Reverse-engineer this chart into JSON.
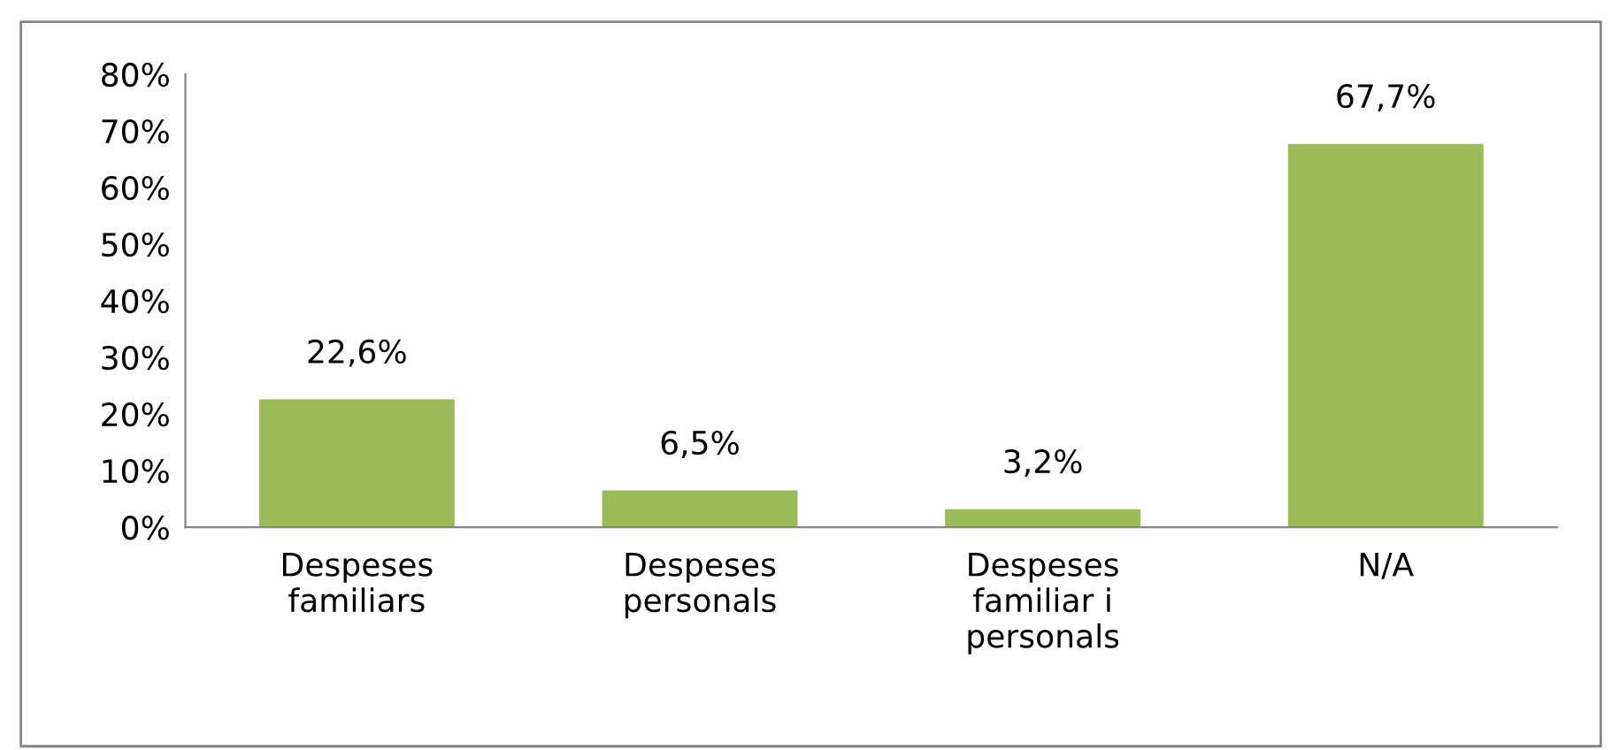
{
  "chart_data": {
    "type": "bar",
    "categories": [
      "Despeses\nfamiliars",
      "Despeses\npersonals",
      "Despeses\nfamiliar i\npersonals",
      "N/A"
    ],
    "values": [
      22.6,
      6.5,
      3.2,
      67.7
    ],
    "color": "#9bbb59",
    "value_labels": [
      "22,6%",
      "6,5%",
      "3,2%",
      "67,7%"
    ],
    "ylim": [
      0,
      80
    ],
    "yticks": [
      {
        "value": 0,
        "label": "0%"
      },
      {
        "value": 10,
        "label": "10%"
      },
      {
        "value": 20,
        "label": "20%"
      },
      {
        "value": 30,
        "label": "30%"
      },
      {
        "value": 40,
        "label": "40%"
      },
      {
        "value": 50,
        "label": "50%"
      },
      {
        "value": 60,
        "label": "60%"
      },
      {
        "value": 70,
        "label": "70%"
      },
      {
        "value": 80,
        "label": "80%"
      }
    ],
    "grid": false
  }
}
